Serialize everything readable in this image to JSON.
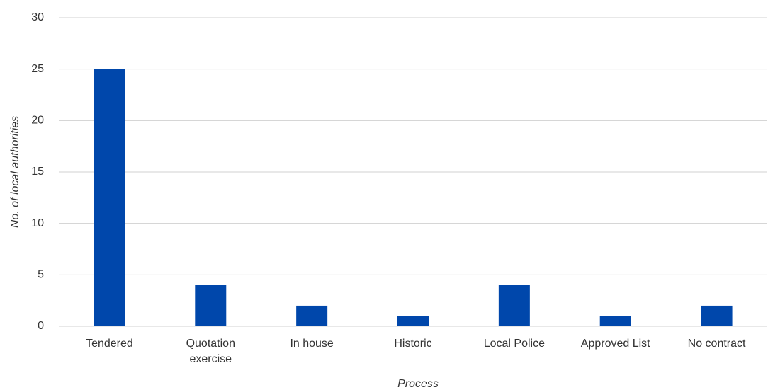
{
  "chart_data": {
    "type": "bar",
    "categories": [
      "Tendered",
      "Quotation exercise",
      "In house",
      "Historic",
      "Local Police",
      "Approved List",
      "No contract"
    ],
    "values": [
      25,
      4,
      2,
      1,
      4,
      1,
      2
    ],
    "color": "#0047ab",
    "x_label": "Process",
    "y_label": "No. of local authorities",
    "ylim": [
      0,
      30
    ],
    "yticks": [
      0,
      5,
      10,
      15,
      20,
      25,
      30
    ],
    "grid": true
  }
}
